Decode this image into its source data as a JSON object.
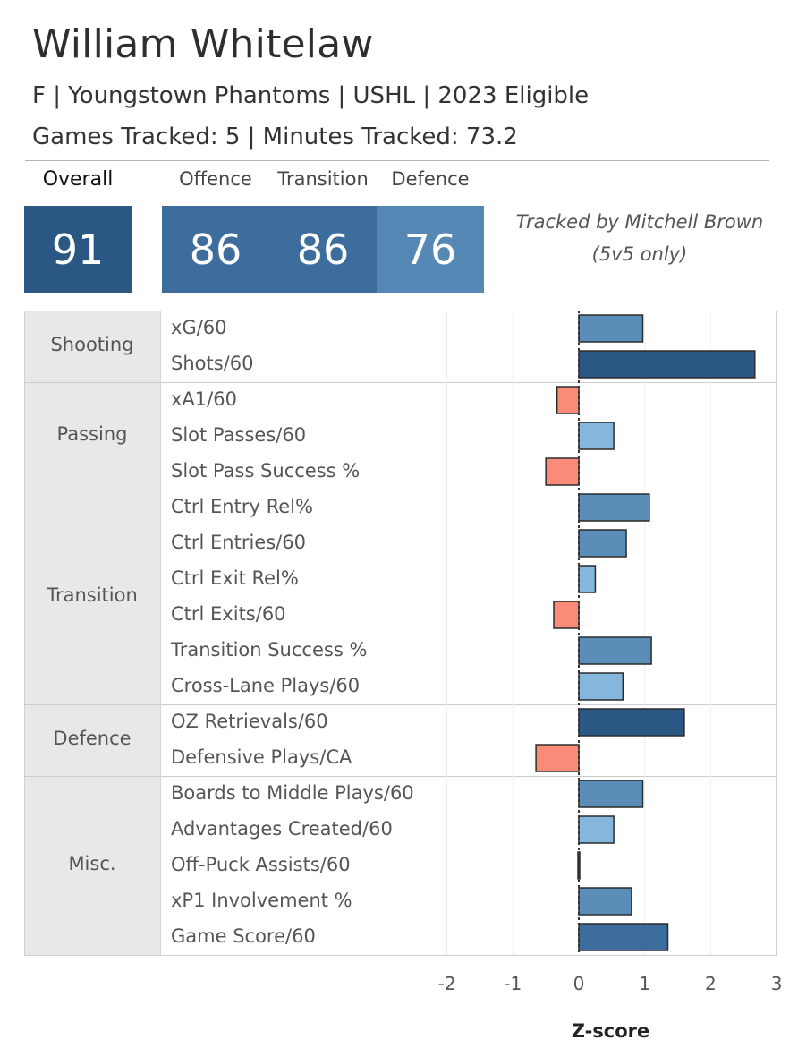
{
  "header": {
    "title": "William Whitelaw",
    "subtitle": "F | Youngstown Phantoms | USHL | 2023 Eligible",
    "tracking": "Games Tracked: 5 | Minutes Tracked: 73.2"
  },
  "scores": {
    "overall": {
      "label": "Overall",
      "value": "91",
      "color": "#2a5783"
    },
    "offence": {
      "label": "Offence",
      "value": "86",
      "color": "#3d6d9c"
    },
    "transition": {
      "label": "Transition",
      "value": "86",
      "color": "#3d6d9c"
    },
    "defence": {
      "label": "Defence",
      "value": "76",
      "color": "#5688b5"
    }
  },
  "credit": {
    "line1": "Tracked by Mitchell Brown",
    "line2": "(5v5 only)"
  },
  "chart_data": {
    "type": "bar",
    "orientation": "horizontal",
    "xlabel": "Z-score",
    "xlim": [
      -2,
      3
    ],
    "xticks": [
      -2,
      -1,
      0,
      1,
      2,
      3
    ],
    "grid": true,
    "reference_line": 0,
    "groups": [
      {
        "name": "Shooting",
        "items": [
          {
            "metric": "xG/60",
            "z": 0.97,
            "color": "#5b8db9"
          },
          {
            "metric": "Shots/60",
            "z": 2.67,
            "color": "#2a5783"
          }
        ]
      },
      {
        "name": "Passing",
        "items": [
          {
            "metric": "xA1/60",
            "z": -0.33,
            "color": "#fa8b78"
          },
          {
            "metric": "Slot Passes/60",
            "z": 0.53,
            "color": "#84b7db"
          },
          {
            "metric": "Slot Pass Success %",
            "z": -0.5,
            "color": "#fa8b78"
          }
        ]
      },
      {
        "name": "Transition",
        "items": [
          {
            "metric": "Ctrl Entry Rel%",
            "z": 1.07,
            "color": "#5b8db9"
          },
          {
            "metric": "Ctrl Entries/60",
            "z": 0.72,
            "color": "#5b8db9"
          },
          {
            "metric": "Ctrl Exit Rel%",
            "z": 0.25,
            "color": "#84b7db"
          },
          {
            "metric": "Ctrl Exits/60",
            "z": -0.38,
            "color": "#fa8b78"
          },
          {
            "metric": "Transition Success %",
            "z": 1.1,
            "color": "#5b8db9"
          },
          {
            "metric": "Cross-Lane Plays/60",
            "z": 0.67,
            "color": "#84b7db"
          }
        ]
      },
      {
        "name": "Defence",
        "items": [
          {
            "metric": "OZ Retrievals/60",
            "z": 1.6,
            "color": "#2a5783"
          },
          {
            "metric": "Defensive Plays/CA",
            "z": -0.65,
            "color": "#fa8b78"
          }
        ]
      },
      {
        "name": "Misc.",
        "items": [
          {
            "metric": "Boards to Middle Plays/60",
            "z": 0.97,
            "color": "#5b8db9"
          },
          {
            "metric": "Advantages Created/60",
            "z": 0.53,
            "color": "#84b7db"
          },
          {
            "metric": "Off-Puck Assists/60",
            "z": 0.0,
            "color": "#3d3d3d"
          },
          {
            "metric": "xP1 Involvement %",
            "z": 0.8,
            "color": "#5b8db9"
          },
          {
            "metric": "Game Score/60",
            "z": 1.35,
            "color": "#3d6d9c"
          }
        ]
      }
    ]
  }
}
